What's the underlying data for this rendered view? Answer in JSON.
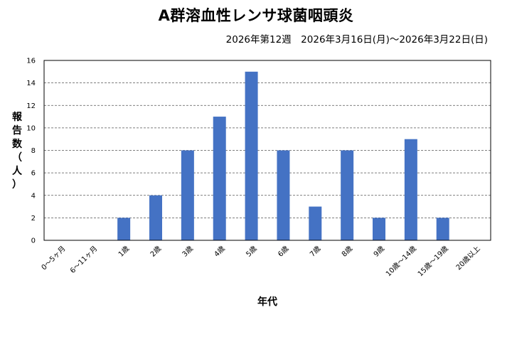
{
  "chart_data": {
    "type": "bar",
    "title": "A群溶血性レンサ球菌咽頭炎",
    "subtitle": "2026年第12週　2026年3月16日(月)～2026年3月22日(日)",
    "xlabel": "年代",
    "ylabel": "報告数（人）",
    "ylim": [
      0,
      16
    ],
    "yticks": [
      0,
      2,
      4,
      6,
      8,
      10,
      12,
      14,
      16
    ],
    "grid": true,
    "categories": [
      "0～5ヶ月",
      "6～11ヶ月",
      "1歳",
      "2歳",
      "3歳",
      "4歳",
      "5歳",
      "6歳",
      "7歳",
      "8歳",
      "9歳",
      "10歳～14歳",
      "15歳～19歳",
      "20歳以上"
    ],
    "values": [
      0,
      0,
      2,
      4,
      8,
      11,
      15,
      8,
      3,
      8,
      2,
      9,
      2,
      0
    ],
    "bar_color": "#4472C4"
  }
}
